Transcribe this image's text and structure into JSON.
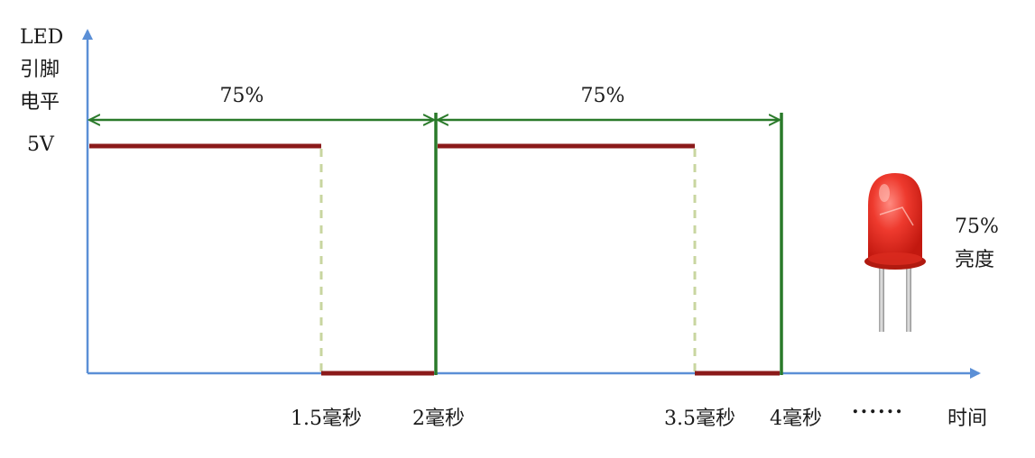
{
  "y_axis_label": [
    "LED",
    "引脚",
    "电平"
  ],
  "voltage_label": "5V",
  "duty_labels": [
    "75%",
    "75%"
  ],
  "time_labels": [
    "1.5毫秒",
    "2毫秒",
    "3.5毫秒",
    "4毫秒"
  ],
  "ellipsis": "......",
  "x_axis_label": "时间",
  "brightness_label": [
    "75%",
    "亮度"
  ],
  "colors": {
    "axis": "#5b8fd6",
    "signal": "#8b1a1a",
    "period": "#2a7a2a",
    "dashed": "#c8d6a0",
    "led": "#e8281e"
  },
  "chart_data": {
    "type": "line",
    "x_unit": "毫秒",
    "high_level": "5V",
    "segments": [
      {
        "from": 0,
        "to": 1.5,
        "level": "high"
      },
      {
        "from": 1.5,
        "to": 2,
        "level": "low"
      },
      {
        "from": 2,
        "to": 3.5,
        "level": "high"
      },
      {
        "from": 3.5,
        "to": 4,
        "level": "low"
      }
    ],
    "period_markers": [
      {
        "from": 0,
        "to": 2,
        "label": "75%"
      },
      {
        "from": 2,
        "to": 4,
        "label": "75%"
      }
    ]
  }
}
